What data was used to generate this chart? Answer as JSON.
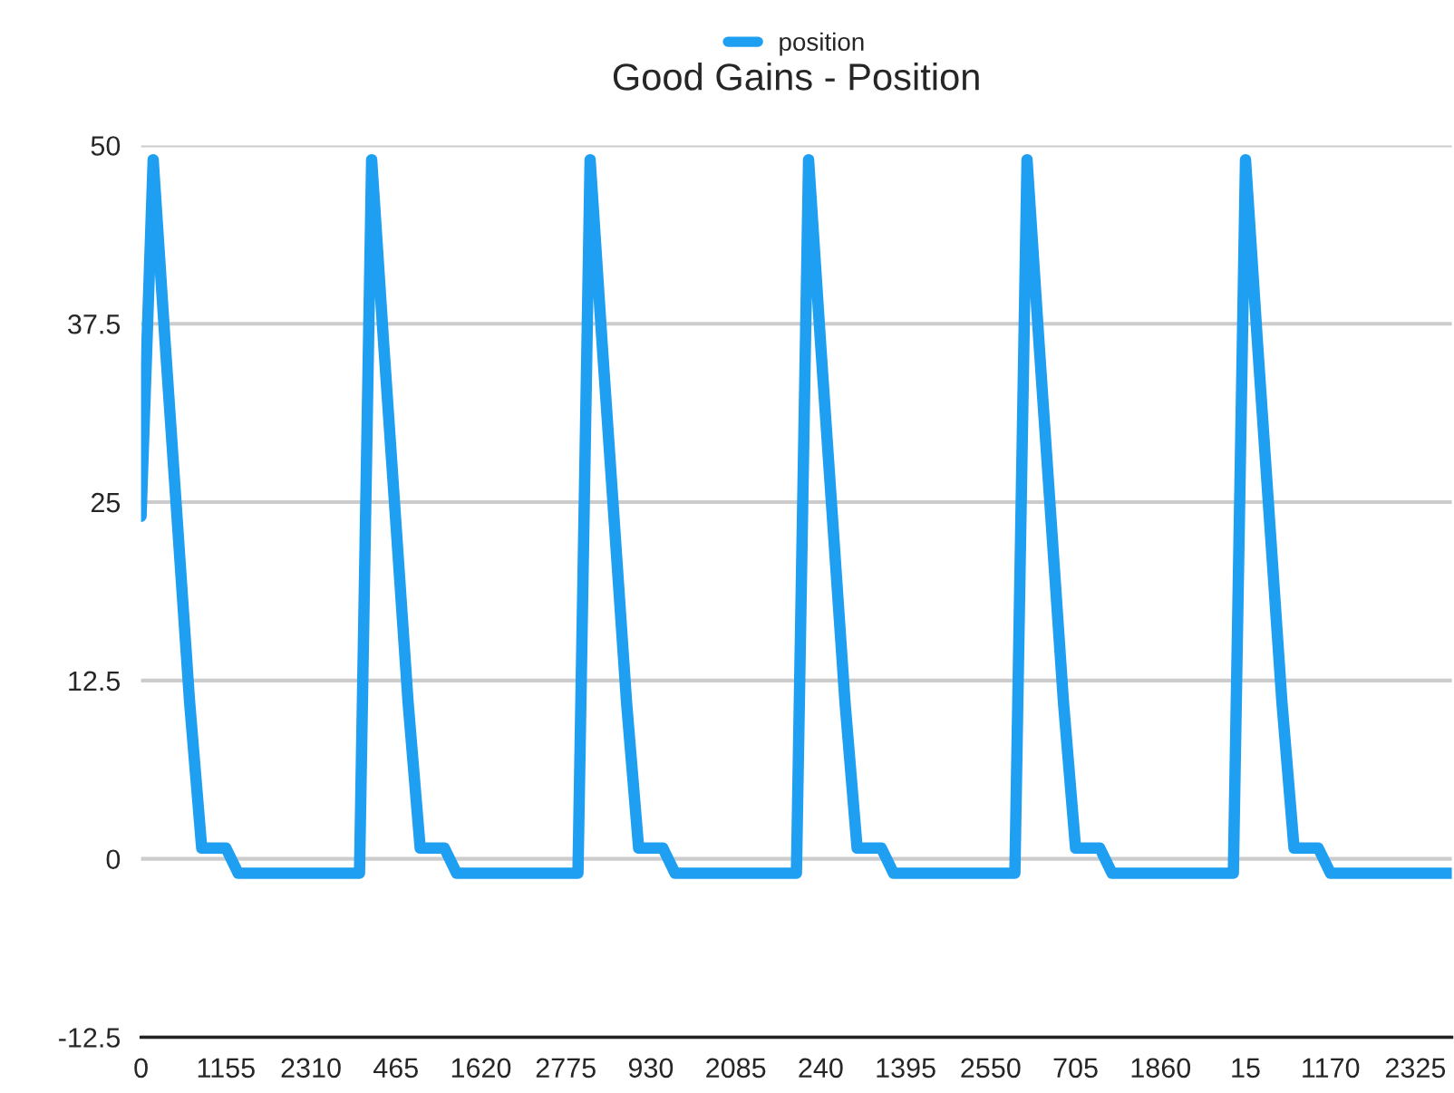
{
  "chart_data": {
    "type": "line",
    "title": "Good Gains - Position",
    "categories": [
      "0",
      null,
      null,
      null,
      null,
      null,
      null,
      "1155",
      null,
      null,
      null,
      null,
      null,
      null,
      "2310",
      null,
      null,
      null,
      null,
      null,
      null,
      "465",
      null,
      null,
      null,
      null,
      null,
      null,
      "1620",
      null,
      null,
      null,
      null,
      null,
      null,
      "2775",
      null,
      null,
      null,
      null,
      null,
      null,
      "930",
      null,
      null,
      null,
      null,
      null,
      null,
      "2085",
      null,
      null,
      null,
      null,
      null,
      null,
      "240",
      null,
      null,
      null,
      null,
      null,
      null,
      "1395",
      null,
      null,
      null,
      null,
      null,
      null,
      "2550",
      null,
      null,
      null,
      null,
      null,
      null,
      "705",
      null,
      null,
      null,
      null,
      null,
      null,
      "1860",
      null,
      null,
      null,
      null,
      null,
      null,
      "15",
      null,
      null,
      null,
      null,
      null,
      null,
      "1170",
      null,
      null,
      null,
      null,
      null,
      null,
      "2325",
      null,
      null,
      null
    ],
    "series": [
      {
        "name": "position",
        "color": "#1e9ff2",
        "values": [
          24,
          49,
          36,
          23.5,
          11,
          0.75,
          0.75,
          0.75,
          -1,
          -1,
          -1,
          -1,
          -1,
          -1,
          -1,
          -1,
          -1,
          -1,
          -1,
          49,
          36,
          23.5,
          11,
          0.75,
          0.75,
          0.75,
          -1,
          -1,
          -1,
          -1,
          -1,
          -1,
          -1,
          -1,
          -1,
          -1,
          -1,
          49,
          36,
          23.5,
          11,
          0.75,
          0.75,
          0.75,
          -1,
          -1,
          -1,
          -1,
          -1,
          -1,
          -1,
          -1,
          -1,
          -1,
          -1,
          49,
          36,
          23.5,
          11,
          0.75,
          0.75,
          0.75,
          -1,
          -1,
          -1,
          -1,
          -1,
          -1,
          -1,
          -1,
          -1,
          -1,
          -1,
          49,
          36,
          23.5,
          11,
          0.75,
          0.75,
          0.75,
          -1,
          -1,
          -1,
          -1,
          -1,
          -1,
          -1,
          -1,
          -1,
          -1,
          -1,
          49,
          36,
          23.5,
          11,
          0.75,
          0.75,
          0.75,
          -1,
          -1,
          -1,
          -1,
          -1,
          -1,
          -1,
          -1,
          -1,
          -1,
          -1
        ]
      }
    ],
    "ylim": [
      -12.5,
      50
    ],
    "yticks": [
      -12.5,
      0,
      12.5,
      25,
      37.5,
      50
    ],
    "grid": "y",
    "legend": "top",
    "marker": "none",
    "line_style": "solid"
  }
}
